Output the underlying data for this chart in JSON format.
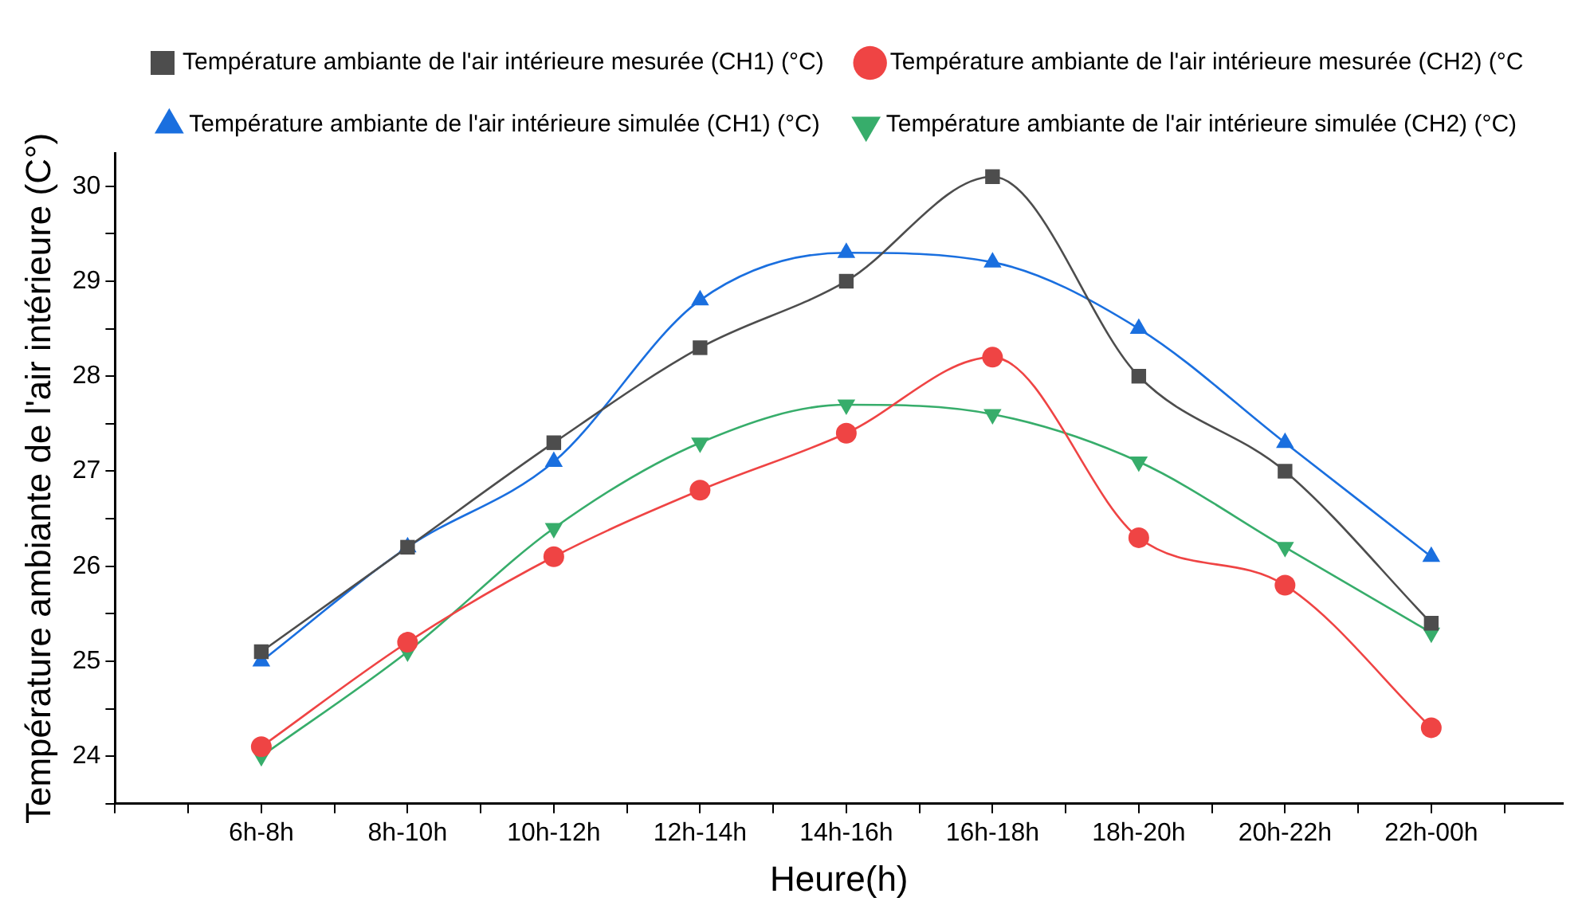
{
  "chart_data": {
    "type": "line",
    "xlabel": "Heure(h)",
    "ylabel": "Température ambiante de l'air intérieure (C°)",
    "categories": [
      "6h-8h",
      "8h-10h",
      "10h-12h",
      "12h-14h",
      "14h-16h",
      "16h-18h",
      "18h-20h",
      "20h-22h",
      "22h-00h"
    ],
    "series": [
      {
        "name": "Température ambiante de l'air intérieure mesurée (CH1) (°C)",
        "color": "#4d4d4d",
        "marker": "square",
        "values": [
          25.1,
          26.2,
          27.3,
          28.3,
          29.0,
          30.1,
          28.0,
          27.0,
          25.4
        ]
      },
      {
        "name": "Température ambiante de l'air intérieure mesurée (CH2) (°C",
        "color": "#ef4444",
        "marker": "circle",
        "values": [
          24.1,
          25.2,
          26.1,
          26.8,
          27.4,
          28.2,
          26.3,
          25.8,
          24.3
        ]
      },
      {
        "name": "Température ambiante de l'air intérieure simulée (CH1) (°C)",
        "color": "#1a6fdf",
        "marker": "triangle",
        "values": [
          25.0,
          26.2,
          27.1,
          28.8,
          29.3,
          29.2,
          28.5,
          27.3,
          26.1
        ]
      },
      {
        "name": "Température ambiante de l'air intérieure simulée (CH2) (°C)",
        "color": "#37ad6b",
        "marker": "triangle-down",
        "values": [
          24.0,
          25.1,
          26.4,
          27.3,
          27.7,
          27.6,
          27.1,
          26.2,
          25.3
        ]
      }
    ],
    "ylim": [
      23.5,
      30.35
    ],
    "yticks": [
      {
        "value": 23.5,
        "label": null
      },
      24,
      {
        "value": 24.5,
        "label": null
      },
      25,
      {
        "value": 25.5,
        "label": null
      },
      26,
      {
        "value": 26.5,
        "label": null
      },
      27,
      {
        "value": 27.5,
        "label": null
      },
      28,
      {
        "value": 28.5,
        "label": null
      },
      29,
      {
        "value": 29.5,
        "label": null
      },
      30
    ],
    "grid": false,
    "legend": "top",
    "line_style": "solid"
  }
}
